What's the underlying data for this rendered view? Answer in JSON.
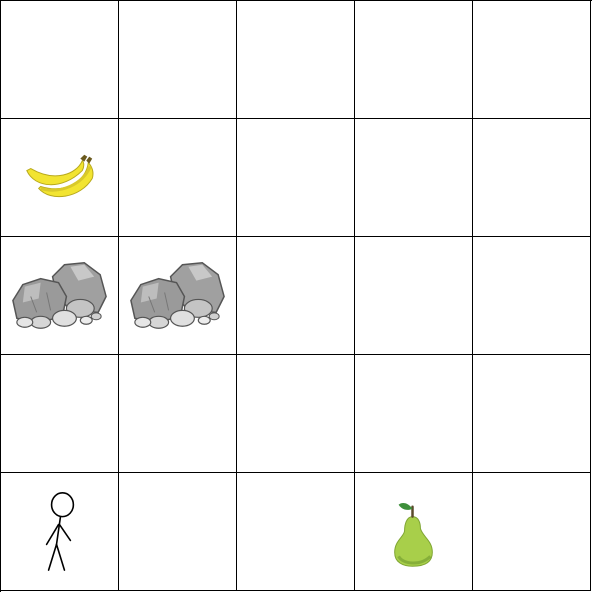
{
  "grid": {
    "rows": 5,
    "cols": 5,
    "line_color": "#000000",
    "background": "#ffffff"
  },
  "items": [
    {
      "row": 1,
      "col": 0,
      "type": "banana",
      "icon": "banana-icon"
    },
    {
      "row": 2,
      "col": 0,
      "type": "rock",
      "icon": "rock-icon"
    },
    {
      "row": 2,
      "col": 1,
      "type": "rock",
      "icon": "rock-icon"
    },
    {
      "row": 4,
      "col": 0,
      "type": "player",
      "icon": "stick-figure-icon"
    },
    {
      "row": 4,
      "col": 3,
      "type": "pear",
      "icon": "pear-icon"
    }
  ],
  "colors": {
    "banana": "#f2e431",
    "rock": "#a9a9a9",
    "pear": "#a8cf4a",
    "leaf": "#3d8f3a"
  }
}
